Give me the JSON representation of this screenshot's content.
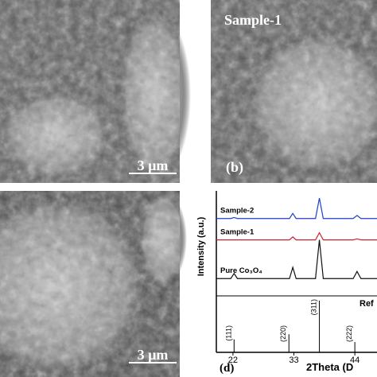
{
  "panels": [
    {
      "scale_bar": "3 µm"
    },
    {
      "sample": "Sample-1",
      "label": "(b)"
    },
    {
      "scale_bar": "3 µm"
    }
  ],
  "chart_data": {
    "type": "line",
    "panel_label": "(d)",
    "xlabel": "2Theta (D",
    "ylabel": "Intensity (a.u.)",
    "x": [
      19,
      21.6,
      22.2,
      22.8,
      32.2,
      32.8,
      33.4,
      36.9,
      37.6,
      38.3,
      43.7,
      44.4,
      45.1,
      48
    ],
    "series": [
      {
        "name": "Sample-2",
        "color": "#1f3fd0",
        "values": [
          76,
          76,
          77,
          76,
          76,
          81,
          76,
          76,
          96,
          76,
          76,
          79,
          76,
          76
        ]
      },
      {
        "name": "Sample-1",
        "color": "#d0202a",
        "values": [
          55,
          55,
          55,
          55,
          55,
          58,
          55,
          55,
          62,
          55,
          55,
          56,
          55,
          55
        ]
      },
      {
        "name": "Pure Co₃O₄",
        "color": "#111111",
        "values": [
          17,
          17,
          22,
          17,
          17,
          28,
          17,
          17,
          55,
          17,
          17,
          24,
          17,
          17
        ]
      }
    ],
    "xlim": [
      19,
      48
    ],
    "ylim": [
      0,
      100
    ],
    "xticks": [
      22,
      33,
      44
    ],
    "reference": {
      "label": "Ref",
      "peaks": [
        "(111)",
        "(220)",
        "(311)",
        "(222)"
      ],
      "x": [
        22.2,
        32.1,
        37.6,
        44.0
      ],
      "heights": [
        25,
        35,
        100,
        20
      ],
      "ylim": [
        0,
        100
      ]
    }
  }
}
